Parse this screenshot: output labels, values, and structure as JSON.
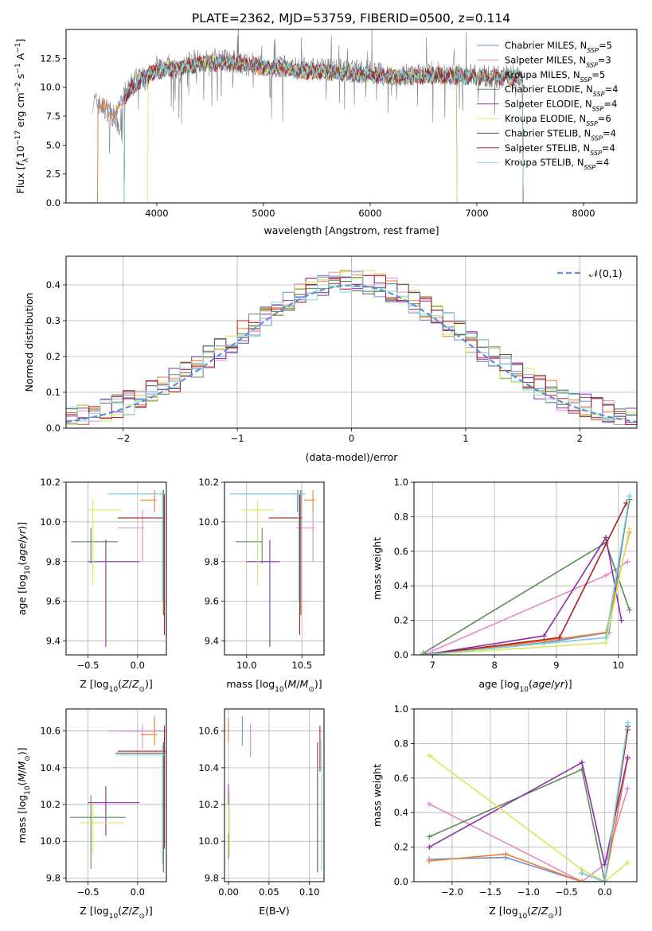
{
  "title": "PLATE=2362, MJD=53759, FIBERID=0500, z=0.114",
  "colors": [
    "#6f8fd8",
    "#e389c4",
    "#ef7f2c",
    "#5e8b5a",
    "#8f2ea8",
    "#d7e85a",
    "#5a5a5a",
    "#b21e1e",
    "#7fd8e0"
  ],
  "models": [
    {
      "name": "Chabrier MILES",
      "nssp": "5"
    },
    {
      "name": "Salpeter MILES",
      "nssp": "3"
    },
    {
      "name": "Kroupa MILES",
      "nssp": "5"
    },
    {
      "name": "Chabrier ELODIE",
      "nssp": "4"
    },
    {
      "name": "Salpeter ELODIE",
      "nssp": "4"
    },
    {
      "name": "Kroupa ELODIE",
      "nssp": "6"
    },
    {
      "name": "Chabrier STELIB",
      "nssp": "4"
    },
    {
      "name": "Salpeter STELIB",
      "nssp": "4"
    },
    {
      "name": "Kroupa STELIB",
      "nssp": "4"
    }
  ],
  "chart_data": [
    {
      "id": "spectrum",
      "type": "line",
      "title": "PLATE=2362, MJD=53759, FIBERID=0500, z=0.114",
      "xlabel": "wavelength [Angstrom, rest frame]",
      "ylabel": "Flux [f_λ 10^-17 erg cm^-2 s^-1 A^-1]",
      "xlim": [
        3150,
        8500
      ],
      "ylim": [
        0,
        15
      ],
      "xticks": [
        4000,
        5000,
        6000,
        7000,
        8000
      ],
      "yticks": [
        0.0,
        2.5,
        5.0,
        7.5,
        10.0,
        12.5
      ],
      "legend": "upper right",
      "grid": false,
      "data_series": {
        "name": "data",
        "color": "#808080",
        "x": [
          3400,
          3450,
          3500,
          3550,
          3600,
          3650,
          3700,
          3750,
          3800,
          3850,
          3900,
          3950,
          4000,
          4100,
          4200,
          4300,
          4400,
          4500,
          4600,
          4700,
          4800,
          4900,
          5000,
          5200,
          5400,
          5600,
          5800,
          6000,
          6200,
          6400,
          6600,
          6800,
          7000,
          7200,
          7400
        ],
        "y": [
          8.8,
          8.6,
          8.2,
          8.0,
          7.4,
          6.5,
          9.5,
          10.0,
          10.8,
          11.2,
          10.5,
          11.5,
          11.8,
          12.0,
          11.0,
          12.3,
          12.4,
          12.2,
          12.6,
          12.3,
          12.0,
          11.8,
          11.7,
          11.8,
          11.6,
          11.5,
          11.6,
          11.4,
          11.2,
          11.0,
          11.3,
          11.1,
          11.0,
          10.9,
          11.1
        ]
      },
      "model_continuum": {
        "x": [
          3400,
          3500,
          3600,
          3700,
          3800,
          3900,
          4000,
          4200,
          4400,
          4600,
          4800,
          5000,
          5400,
          5800,
          6200,
          6600,
          7000,
          7400
        ],
        "y": [
          8.7,
          8.3,
          7.6,
          9.2,
          10.2,
          10.9,
          11.4,
          11.7,
          12.0,
          12.1,
          12.0,
          11.7,
          11.4,
          11.2,
          10.9,
          11.0,
          10.9,
          10.8
        ]
      },
      "model_ranges": [
        [
          3450,
          7430
        ],
        [
          3700,
          7430
        ],
        [
          3450,
          7430
        ],
        [
          3700,
          7430
        ],
        [
          3700,
          6810
        ],
        [
          3920,
          6810
        ],
        [
          3700,
          7430
        ],
        [
          3700,
          7430
        ],
        [
          3700,
          7430
        ]
      ]
    },
    {
      "id": "residuals",
      "type": "step",
      "xlabel": "(data-model)/error",
      "ylabel": "Normed distribution",
      "xlim": [
        -2.5,
        2.5
      ],
      "ylim": [
        0,
        0.48
      ],
      "xticks": [
        -2,
        -1,
        0,
        1,
        2
      ],
      "yticks": [
        0.0,
        0.1,
        0.2,
        0.3,
        0.4
      ],
      "legend": "upper right",
      "grid": true,
      "reference": {
        "label": "𝒩(0,1)",
        "mean": 0,
        "sigma": 1
      },
      "bin_width": 0.1,
      "n_bins": 50
    },
    {
      "id": "age_Z",
      "type": "errorbar",
      "xlabel": "Z [log10(Z/Z⊙)]",
      "ylabel": "age [log10(age/yr)]",
      "xlim": [
        -0.72,
        0.29
      ],
      "ylim": [
        9.33,
        10.2
      ],
      "xticks": [
        -0.5,
        0.0
      ],
      "yticks": [
        9.4,
        9.6,
        9.8,
        10.0,
        10.2
      ],
      "grid": true,
      "points": [
        {
          "x": 0.17,
          "xlo": -0.2,
          "xhi": 0.28,
          "y": 10.14,
          "ylo": 10.05,
          "yhi": 10.16
        },
        {
          "x": 0.05,
          "xlo": -0.2,
          "xhi": 0.07,
          "y": 9.97,
          "ylo": 9.8,
          "yhi": 10.06
        },
        {
          "x": 0.17,
          "xlo": 0.03,
          "xhi": 0.19,
          "y": 10.11,
          "ylo": 10.05,
          "yhi": 10.16
        },
        {
          "x": -0.47,
          "xlo": -0.67,
          "xhi": -0.2,
          "y": 9.9,
          "ylo": 9.79,
          "yhi": 9.97
        },
        {
          "x": -0.32,
          "xlo": -0.5,
          "xhi": 0.02,
          "y": 9.8,
          "ylo": 9.37,
          "yhi": 9.91
        },
        {
          "x": -0.45,
          "xlo": -0.5,
          "xhi": -0.16,
          "y": 10.06,
          "ylo": 9.68,
          "yhi": 10.11
        },
        {
          "x": 0.26,
          "xlo": -0.3,
          "xhi": 0.28,
          "y": 10.14,
          "ylo": 9.53,
          "yhi": 10.16
        },
        {
          "x": 0.27,
          "xlo": -0.2,
          "xhi": 0.27,
          "y": 10.02,
          "ylo": 9.43,
          "yhi": 10.14
        },
        {
          "x": 0.25,
          "xlo": -0.3,
          "xhi": 0.28,
          "y": 10.14,
          "ylo": 9.6,
          "yhi": 10.16
        }
      ]
    },
    {
      "id": "age_mass",
      "type": "errorbar",
      "xlabel": "mass [log10(M/M⊙)]",
      "ylabel": "",
      "xlim": [
        9.8,
        10.7
      ],
      "ylim": [
        9.33,
        10.2
      ],
      "xticks": [
        10.0,
        10.5
      ],
      "yticks": [
        9.4,
        9.6,
        9.8,
        10.0,
        10.2
      ],
      "grid": true,
      "points": [
        {
          "x": 10.46,
          "xlo": 9.85,
          "xhi": 10.53,
          "y": 10.14,
          "ylo": 10.05,
          "yhi": 10.16
        },
        {
          "x": 10.6,
          "xlo": 10.45,
          "xhi": 10.62,
          "y": 9.97,
          "ylo": 9.8,
          "yhi": 10.06
        },
        {
          "x": 10.6,
          "xlo": 10.52,
          "xhi": 10.62,
          "y": 10.11,
          "ylo": 10.05,
          "yhi": 10.16
        },
        {
          "x": 10.14,
          "xlo": 9.9,
          "xhi": 10.14,
          "y": 9.9,
          "ylo": 9.79,
          "yhi": 9.97
        },
        {
          "x": 10.21,
          "xlo": 10.0,
          "xhi": 10.3,
          "y": 9.8,
          "ylo": 9.37,
          "yhi": 9.91
        },
        {
          "x": 10.1,
          "xlo": 9.95,
          "xhi": 10.25,
          "y": 10.06,
          "ylo": 9.68,
          "yhi": 10.11
        },
        {
          "x": 10.49,
          "xlo": 9.85,
          "xhi": 10.53,
          "y": 10.14,
          "ylo": 9.53,
          "yhi": 10.16
        },
        {
          "x": 10.48,
          "xlo": 10.2,
          "xhi": 10.5,
          "y": 10.02,
          "ylo": 9.43,
          "yhi": 10.14
        },
        {
          "x": 10.47,
          "xlo": 9.85,
          "xhi": 10.53,
          "y": 10.14,
          "ylo": 9.6,
          "yhi": 10.16
        }
      ]
    },
    {
      "id": "weight_age",
      "type": "line",
      "xlabel": "age [log10(age/yr)]",
      "ylabel": "mass weight",
      "xlim": [
        6.7,
        10.3
      ],
      "ylim": [
        0,
        1.0
      ],
      "xticks": [
        7,
        8,
        9,
        10
      ],
      "yticks": [
        0.0,
        0.2,
        0.4,
        0.6,
        0.8,
        1.0
      ],
      "grid": true,
      "series": [
        {
          "x": [
            6.85,
            8.8,
            9.85,
            10.18
          ],
          "y": [
            0.0,
            0.07,
            0.13,
            0.92
          ]
        },
        {
          "x": [
            6.85,
            9.8,
            10.15
          ],
          "y": [
            0.0,
            0.46,
            0.54
          ]
        },
        {
          "x": [
            6.85,
            8.8,
            9.8,
            10.18
          ],
          "y": [
            0.0,
            0.08,
            0.13,
            0.71
          ]
        },
        {
          "x": [
            6.85,
            9.8,
            10.18
          ],
          "y": [
            0.01,
            0.65,
            0.26
          ]
        },
        {
          "x": [
            6.85,
            8.8,
            9.8,
            10.05
          ],
          "y": [
            0.0,
            0.11,
            0.68,
            0.2
          ]
        },
        {
          "x": [
            6.85,
            9.8,
            10.18
          ],
          "y": [
            0.0,
            0.07,
            0.73
          ]
        },
        {
          "x": [
            6.85,
            9.8,
            10.18
          ],
          "y": [
            0.0,
            0.1,
            0.9
          ]
        },
        {
          "x": [
            6.85,
            9.05,
            10.13
          ],
          "y": [
            0.0,
            0.1,
            0.88
          ]
        },
        {
          "x": [
            6.85,
            9.8,
            10.18
          ],
          "y": [
            0.0,
            0.1,
            0.92
          ]
        }
      ]
    },
    {
      "id": "mass_Z",
      "type": "errorbar",
      "xlabel": "Z [log10(Z/Z⊙)]",
      "ylabel": "mass [log10(M/M⊙)]",
      "xlim": [
        -0.72,
        0.29
      ],
      "ylim": [
        9.78,
        10.72
      ],
      "xticks": [
        -0.5,
        0.0
      ],
      "yticks": [
        9.8,
        10.0,
        10.2,
        10.4,
        10.6
      ],
      "grid": true,
      "points": [
        {
          "x": 0.17,
          "xlo": -0.2,
          "xhi": 0.28,
          "y": 10.6,
          "ylo": 10.55,
          "yhi": 10.68
        },
        {
          "x": 0.05,
          "xlo": -0.3,
          "xhi": 0.2,
          "y": 10.6,
          "ylo": 10.5,
          "yhi": 10.64
        },
        {
          "x": 0.17,
          "xlo": 0.03,
          "xhi": 0.2,
          "y": 10.58,
          "ylo": 10.52,
          "yhi": 10.66
        },
        {
          "x": -0.47,
          "xlo": -0.68,
          "xhi": -0.12,
          "y": 10.13,
          "ylo": 9.85,
          "yhi": 10.25
        },
        {
          "x": -0.32,
          "xlo": -0.5,
          "xhi": 0.02,
          "y": 10.21,
          "ylo": 10.03,
          "yhi": 10.3
        },
        {
          "x": -0.45,
          "xlo": -0.58,
          "xhi": -0.14,
          "y": 10.1,
          "ylo": 9.93,
          "yhi": 10.21
        },
        {
          "x": 0.26,
          "xlo": -0.22,
          "xhi": 0.28,
          "y": 10.48,
          "ylo": 9.83,
          "yhi": 10.54
        },
        {
          "x": 0.27,
          "xlo": -0.2,
          "xhi": 0.28,
          "y": 10.49,
          "ylo": 9.96,
          "yhi": 10.63
        },
        {
          "x": 0.25,
          "xlo": -0.22,
          "xhi": 0.28,
          "y": 10.47,
          "ylo": 9.88,
          "yhi": 10.52
        }
      ]
    },
    {
      "id": "mass_EBV",
      "type": "errorbar",
      "xlabel": "E(B-V)",
      "ylabel": "",
      "xlim": [
        -0.005,
        0.118
      ],
      "ylim": [
        9.78,
        10.72
      ],
      "xticks": [
        0.0,
        0.05,
        0.1
      ],
      "yticks": [
        9.8,
        10.0,
        10.2,
        10.4,
        10.6
      ],
      "grid": true,
      "points": [
        {
          "x": 0.017,
          "y": 10.6,
          "ylo": 10.52,
          "yhi": 10.68
        },
        {
          "x": 0.027,
          "y": 10.55,
          "ylo": 10.46,
          "yhi": 10.64
        },
        {
          "x": 0.0,
          "y": 10.6,
          "ylo": 10.54,
          "yhi": 10.67
        },
        {
          "x": 0.0,
          "y": 9.98,
          "ylo": 9.9,
          "yhi": 10.04
        },
        {
          "x": 0.0,
          "y": 10.25,
          "ylo": 10.2,
          "yhi": 10.31
        },
        {
          "x": 0.001,
          "y": 10.2,
          "ylo": 9.92,
          "yhi": 10.26
        },
        {
          "x": 0.11,
          "y": 10.18,
          "ylo": 9.83,
          "yhi": 10.54
        },
        {
          "x": 0.113,
          "y": 10.5,
          "ylo": 10.38,
          "yhi": 10.63
        },
        {
          "x": 0.115,
          "y": 10.2,
          "ylo": 9.84,
          "yhi": 10.55
        }
      ]
    },
    {
      "id": "weight_Z",
      "type": "line",
      "xlabel": "Z [log10(Z/Z⊙)]",
      "ylabel": "mass weight",
      "xlim": [
        -2.5,
        0.42
      ],
      "ylim": [
        0,
        1.0
      ],
      "xticks": [
        -2.0,
        -1.5,
        -1.0,
        -0.5,
        0.0
      ],
      "yticks": [
        0.0,
        0.2,
        0.4,
        0.6,
        0.8,
        1.0
      ],
      "grid": true,
      "series": [
        {
          "x": [
            -2.3,
            -1.3,
            -0.3,
            0.0,
            0.3
          ],
          "y": [
            0.13,
            0.14,
            0.0,
            0.0,
            0.92
          ]
        },
        {
          "x": [
            -2.3,
            -0.3,
            0.0,
            0.3
          ],
          "y": [
            0.45,
            0.0,
            0.1,
            0.54
          ]
        },
        {
          "x": [
            -2.3,
            -1.3,
            -0.3,
            0.0,
            0.3
          ],
          "y": [
            0.12,
            0.16,
            0.0,
            0.0,
            0.71
          ]
        },
        {
          "x": [
            -2.3,
            -0.3,
            0.0,
            0.3
          ],
          "y": [
            0.26,
            0.65,
            0.0,
            0.9
          ]
        },
        {
          "x": [
            -2.3,
            -0.3,
            0.0,
            0.3
          ],
          "y": [
            0.2,
            0.69,
            0.1,
            0.72
          ]
        },
        {
          "x": [
            -2.3,
            -0.3,
            0.0,
            0.3
          ],
          "y": [
            0.73,
            0.07,
            0.0,
            0.11
          ]
        },
        {
          "x": [
            -0.3,
            0.0,
            0.3
          ],
          "y": [
            0.05,
            0.0,
            0.9
          ]
        },
        {
          "x": [
            -0.3,
            0.0,
            0.3
          ],
          "y": [
            0.05,
            0.0,
            0.88
          ]
        },
        {
          "x": [
            -0.3,
            0.0,
            0.3
          ],
          "y": [
            0.05,
            0.0,
            0.92
          ]
        }
      ]
    }
  ]
}
